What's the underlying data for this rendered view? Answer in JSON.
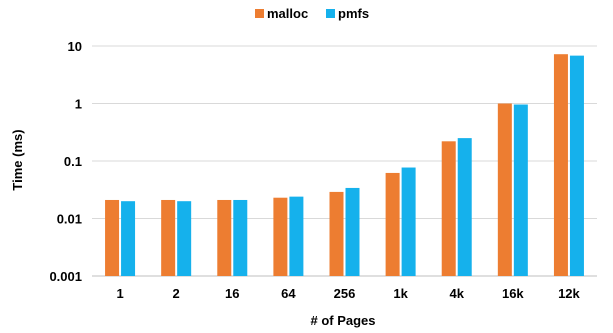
{
  "chart_data": {
    "type": "bar",
    "title": "",
    "xlabel": "# of Pages",
    "ylabel": "Time (ms)",
    "yscale": "log",
    "ylim": [
      0.001,
      10
    ],
    "yticks": [
      {
        "value": 0.001,
        "label": "0.001"
      },
      {
        "value": 0.01,
        "label": "0.01"
      },
      {
        "value": 0.1,
        "label": "0.1"
      },
      {
        "value": 1,
        "label": "1"
      },
      {
        "value": 10,
        "label": "10"
      }
    ],
    "grid": "horizontal",
    "legend": "top-center",
    "categories": [
      "1",
      "2",
      "16",
      "64",
      "256",
      "1k",
      "4k",
      "16k",
      "12k"
    ],
    "series": [
      {
        "name": "malloc",
        "color": "#ED7D31",
        "values": [
          0.021,
          0.021,
          0.021,
          0.023,
          0.029,
          0.062,
          0.22,
          1.0,
          7.2
        ]
      },
      {
        "name": "pmfs",
        "color": "#15B1EC",
        "values": [
          0.02,
          0.02,
          0.021,
          0.024,
          0.034,
          0.077,
          0.25,
          0.96,
          6.8
        ]
      }
    ]
  }
}
